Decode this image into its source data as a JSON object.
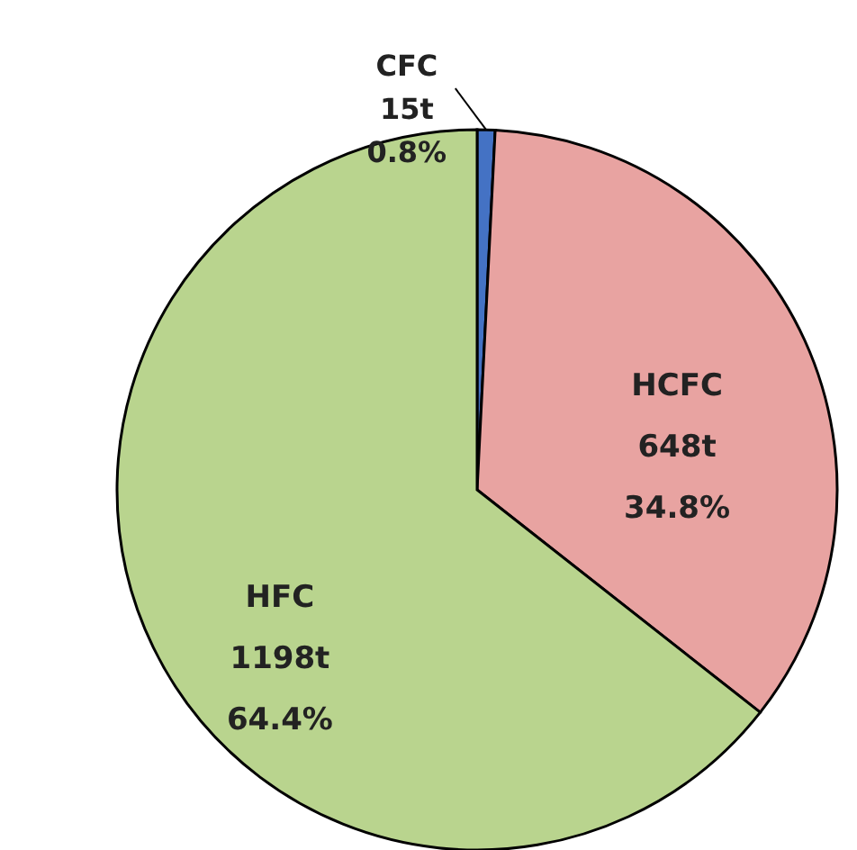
{
  "chart_data": {
    "type": "pie",
    "categories": [
      "CFC",
      "HCFC",
      "HFC"
    ],
    "values": [
      0.8,
      34.8,
      64.4
    ],
    "colors": [
      "#4472c4",
      "#e8a3a1",
      "#b9d48e"
    ],
    "value_labels": [
      "15t\n0.8%",
      "648t\n34.8%",
      "1198t\n64.4%"
    ]
  }
}
